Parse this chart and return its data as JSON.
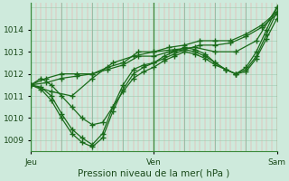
{
  "xlabel": "Pression niveau de la mer( hPa )",
  "ylim": [
    1008.5,
    1015.2
  ],
  "xlim": [
    0,
    48
  ],
  "yticks": [
    1009,
    1010,
    1011,
    1012,
    1013,
    1014
  ],
  "xtick_positions": [
    0,
    24,
    48
  ],
  "xtick_labels": [
    "Jeu",
    "Ven",
    "Sam"
  ],
  "bg_color": "#ceeadc",
  "grid_h_color": "#a0c8b0",
  "grid_v_pink": "#f0a0a0",
  "grid_v_green": "#90b8a0",
  "line_color": "#1a6b1a",
  "marker": "+",
  "markersize": 4,
  "linewidth": 0.9,
  "series": [
    {
      "x": [
        0,
        2,
        4,
        6,
        8,
        10,
        12,
        14,
        16,
        18,
        20,
        22,
        24,
        26,
        28,
        30,
        32,
        34,
        36,
        38,
        40,
        42,
        44,
        46,
        48
      ],
      "y": [
        1011.5,
        1011.4,
        1011.0,
        1010.2,
        1009.5,
        1009.1,
        1008.8,
        1009.3,
        1010.5,
        1011.5,
        1012.2,
        1012.4,
        1012.5,
        1012.7,
        1012.9,
        1013.1,
        1013.0,
        1012.8,
        1012.5,
        1012.2,
        1012.0,
        1012.3,
        1013.0,
        1014.0,
        1015.0
      ]
    },
    {
      "x": [
        0,
        2,
        4,
        6,
        8,
        10,
        12,
        14,
        16,
        18,
        20,
        22,
        24,
        26,
        28,
        30,
        32,
        34,
        36,
        38,
        40,
        42,
        44,
        46,
        48
      ],
      "y": [
        1011.5,
        1011.3,
        1010.8,
        1010.0,
        1009.3,
        1008.9,
        1008.7,
        1009.1,
        1010.3,
        1011.3,
        1012.0,
        1012.3,
        1012.5,
        1012.8,
        1013.0,
        1013.2,
        1013.1,
        1012.9,
        1012.5,
        1012.2,
        1012.0,
        1012.2,
        1012.8,
        1013.8,
        1014.8
      ]
    },
    {
      "x": [
        0,
        2,
        4,
        6,
        8,
        10,
        12,
        14,
        16,
        18,
        20,
        22,
        24,
        26,
        28,
        30,
        32,
        34,
        36,
        38,
        40,
        42,
        44,
        46,
        48
      ],
      "y": [
        1011.5,
        1011.8,
        1011.5,
        1011.0,
        1010.5,
        1010.0,
        1009.7,
        1009.8,
        1010.5,
        1011.2,
        1011.8,
        1012.1,
        1012.3,
        1012.6,
        1012.8,
        1013.0,
        1012.9,
        1012.7,
        1012.4,
        1012.2,
        1012.0,
        1012.1,
        1012.7,
        1013.6,
        1014.5
      ]
    },
    {
      "x": [
        0,
        3,
        6,
        9,
        12,
        15,
        18,
        21,
        24,
        27,
        30,
        33,
        36,
        39,
        42,
        45,
        48
      ],
      "y": [
        1011.5,
        1011.8,
        1012.0,
        1012.0,
        1012.0,
        1012.3,
        1012.5,
        1013.0,
        1013.0,
        1013.2,
        1013.3,
        1013.5,
        1013.5,
        1013.5,
        1013.8,
        1014.2,
        1014.8
      ]
    },
    {
      "x": [
        0,
        3,
        6,
        9,
        12,
        15,
        18,
        21,
        24,
        27,
        30,
        33,
        36,
        39,
        42,
        45,
        48
      ],
      "y": [
        1011.5,
        1011.6,
        1011.8,
        1011.9,
        1012.0,
        1012.2,
        1012.4,
        1012.8,
        1012.8,
        1013.0,
        1013.1,
        1013.3,
        1013.3,
        1013.4,
        1013.7,
        1014.1,
        1014.7
      ]
    },
    {
      "x": [
        0,
        4,
        8,
        12,
        16,
        20,
        24,
        28,
        32,
        36,
        40,
        44,
        48
      ],
      "y": [
        1011.5,
        1011.2,
        1011.0,
        1011.8,
        1012.5,
        1012.8,
        1013.0,
        1013.1,
        1013.2,
        1013.0,
        1013.0,
        1013.5,
        1015.0
      ]
    }
  ]
}
